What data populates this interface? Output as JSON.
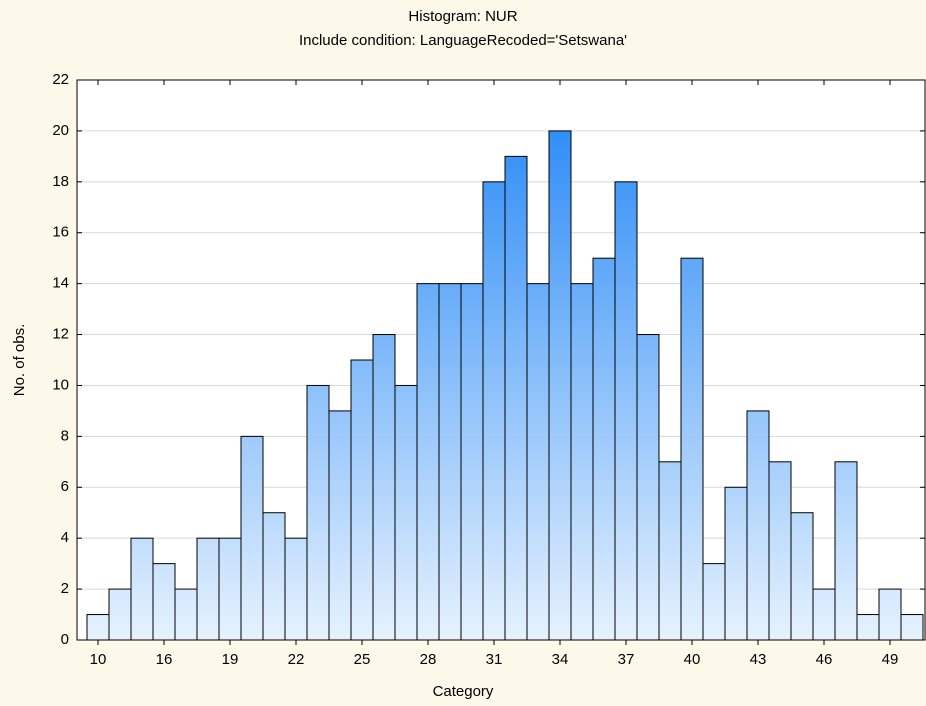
{
  "chart_data": {
    "type": "bar",
    "title": "Histogram: NUR",
    "subtitle": "Include condition: LanguageRecoded='Setswana'",
    "xlabel": "Category",
    "ylabel": "No. of obs.",
    "categories": [
      "10",
      null,
      null,
      "16",
      null,
      null,
      "19",
      null,
      null,
      "22",
      null,
      null,
      "25",
      null,
      null,
      "28",
      null,
      null,
      "31",
      null,
      null,
      "34",
      null,
      null,
      "37",
      null,
      null,
      "40",
      null,
      null,
      "43",
      null,
      null,
      "46",
      null,
      null,
      "49",
      null
    ],
    "values": [
      1,
      2,
      4,
      3,
      2,
      4,
      4,
      8,
      5,
      4,
      10,
      9,
      11,
      12,
      10,
      14,
      14,
      14,
      18,
      19,
      14,
      20,
      14,
      15,
      18,
      12,
      7,
      15,
      3,
      6,
      9,
      7,
      5,
      2,
      7,
      1,
      2,
      1
    ],
    "color": "#2a8af5",
    "ylim": [
      0,
      22
    ],
    "yticks": [
      0,
      2,
      4,
      6,
      8,
      10,
      12,
      14,
      16,
      18,
      20,
      22
    ],
    "grid": true
  }
}
